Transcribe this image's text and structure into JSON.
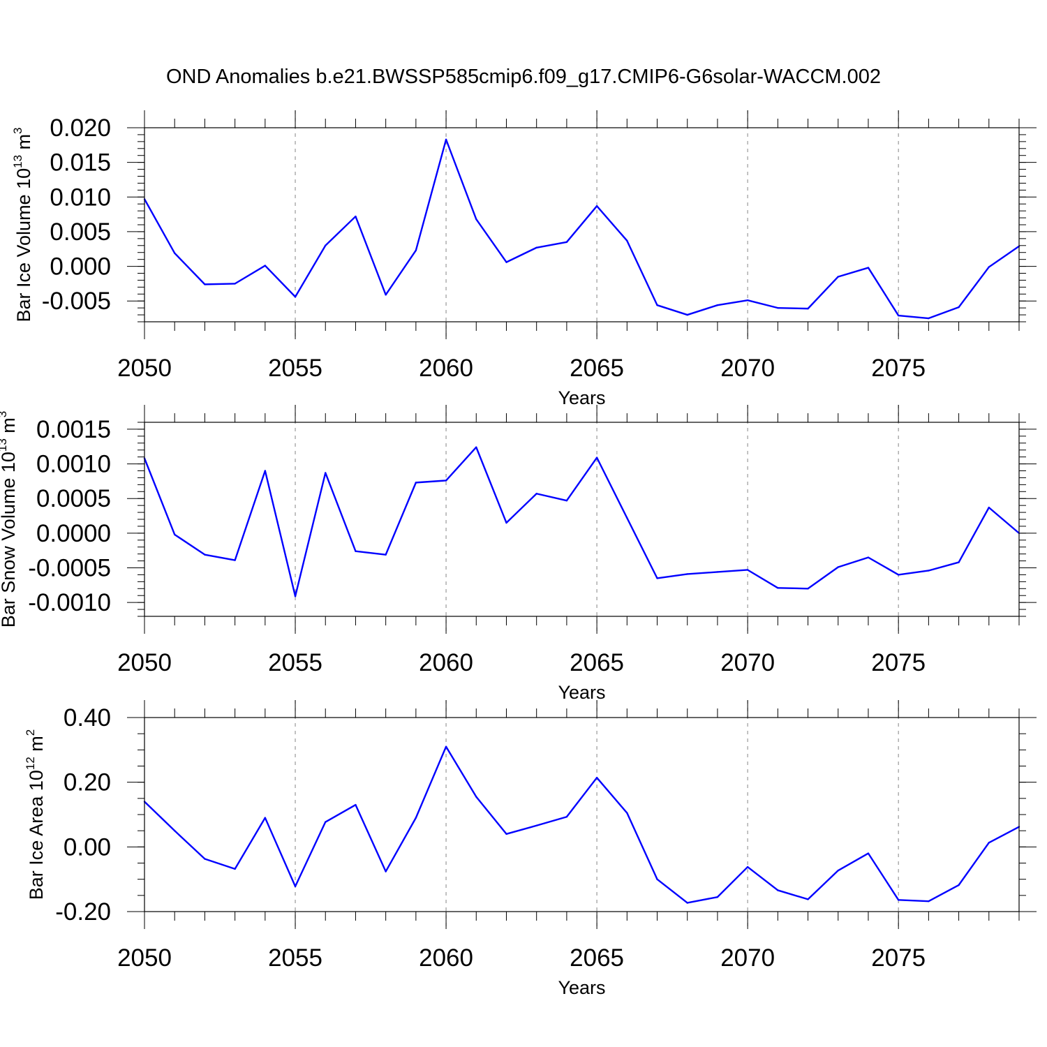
{
  "figure": {
    "title": "OND Anomalies b.e21.BWSSP585cmip6.f09_g17.CMIP6-G6solar-WACCM.002",
    "line_color": "#0000ff",
    "grid_color": "#999999"
  },
  "chart_data": [
    {
      "type": "line",
      "ylabel": "Bar Ice Volume 10",
      "ylabel_exponent": "13",
      "ylabel_unit": " m",
      "ylabel_unit_exponent": "3",
      "xlabel": "Years",
      "xlim": [
        2050,
        2079
      ],
      "ylim": [
        -0.008,
        0.02
      ],
      "x_ticks": [
        2050,
        2055,
        2060,
        2065,
        2070,
        2075
      ],
      "x_tick_labels": [
        "2050",
        "2055",
        "2060",
        "2065",
        "2070",
        "2075"
      ],
      "y_ticks": [
        -0.005,
        0.0,
        0.005,
        0.01,
        0.015,
        0.02
      ],
      "y_tick_labels": [
        "-0.005",
        "0.000",
        "0.005",
        "0.010",
        "0.015",
        "0.020"
      ],
      "y_minor_step": 0.001,
      "grid_x": [
        2055,
        2060,
        2065,
        2070,
        2075
      ],
      "x": [
        2050,
        2051,
        2052,
        2053,
        2054,
        2055,
        2056,
        2057,
        2058,
        2059,
        2060,
        2061,
        2062,
        2063,
        2064,
        2065,
        2066,
        2067,
        2068,
        2069,
        2070,
        2071,
        2072,
        2073,
        2074,
        2075,
        2076,
        2077,
        2078,
        2079
      ],
      "series": [
        {
          "values": [
            0.0097,
            0.0019,
            -0.0026,
            -0.0025,
            0.0001,
            -0.0044,
            0.003,
            0.0072,
            -0.0041,
            0.0023,
            0.0183,
            0.0068,
            0.0006,
            0.0027,
            0.0035,
            0.0087,
            0.0037,
            -0.0056,
            -0.007,
            -0.0056,
            -0.0049,
            -0.006,
            -0.0061,
            -0.0015,
            -0.0002,
            -0.0071,
            -0.0075,
            -0.0059,
            -0.0001,
            0.0029
          ]
        }
      ]
    },
    {
      "type": "line",
      "ylabel": "Bar Snow Volume 10",
      "ylabel_exponent": "13",
      "ylabel_unit": " m",
      "ylabel_unit_exponent": "3",
      "xlabel": "Years",
      "xlim": [
        2050,
        2079
      ],
      "ylim": [
        -0.0012,
        0.0016
      ],
      "x_ticks": [
        2050,
        2055,
        2060,
        2065,
        2070,
        2075
      ],
      "x_tick_labels": [
        "2050",
        "2055",
        "2060",
        "2065",
        "2070",
        "2075"
      ],
      "y_ticks": [
        -0.001,
        -0.0005,
        0.0,
        0.0005,
        0.001,
        0.0015
      ],
      "y_tick_labels": [
        "-0.0010",
        "-0.0005",
        "0.0000",
        "0.0005",
        "0.0010",
        "0.0015"
      ],
      "y_minor_step": 0.0001,
      "grid_x": [
        2055,
        2060,
        2065,
        2070,
        2075
      ],
      "x": [
        2050,
        2051,
        2052,
        2053,
        2054,
        2055,
        2056,
        2057,
        2058,
        2059,
        2060,
        2061,
        2062,
        2063,
        2064,
        2065,
        2066,
        2067,
        2068,
        2069,
        2070,
        2071,
        2072,
        2073,
        2074,
        2075,
        2076,
        2077,
        2078,
        2079
      ],
      "series": [
        {
          "values": [
            0.00108,
            -2e-05,
            -0.00031,
            -0.00039,
            0.0009,
            -0.00091,
            0.00087,
            -0.00026,
            -0.00031,
            0.00073,
            0.00076,
            0.00124,
            0.00015,
            0.00057,
            0.00047,
            0.00109,
            0.00022,
            -0.00065,
            -0.00059,
            -0.00056,
            -0.00053,
            -0.00079,
            -0.0008,
            -0.00049,
            -0.00035,
            -0.0006,
            -0.00054,
            -0.00042,
            0.00037,
            0.0
          ]
        }
      ]
    },
    {
      "type": "line",
      "ylabel": "Bar Ice Area 10",
      "ylabel_exponent": "12",
      "ylabel_unit": " m",
      "ylabel_unit_exponent": "2",
      "xlabel": "Years",
      "xlim": [
        2050,
        2079
      ],
      "ylim": [
        -0.2,
        0.4
      ],
      "x_ticks": [
        2050,
        2055,
        2060,
        2065,
        2070,
        2075
      ],
      "x_tick_labels": [
        "2050",
        "2055",
        "2060",
        "2065",
        "2070",
        "2075"
      ],
      "y_ticks": [
        -0.2,
        0.0,
        0.2,
        0.4
      ],
      "y_tick_labels": [
        "-0.20",
        "0.00",
        "0.20",
        "0.40"
      ],
      "y_minor_step": 0.05,
      "grid_x": [
        2055,
        2060,
        2065,
        2070,
        2075
      ],
      "x": [
        2050,
        2051,
        2052,
        2053,
        2054,
        2055,
        2056,
        2057,
        2058,
        2059,
        2060,
        2061,
        2062,
        2063,
        2064,
        2065,
        2066,
        2067,
        2068,
        2069,
        2070,
        2071,
        2072,
        2073,
        2074,
        2075,
        2076,
        2077,
        2078,
        2079
      ],
      "series": [
        {
          "values": [
            0.14,
            0.05,
            -0.037,
            -0.068,
            0.09,
            -0.122,
            0.077,
            0.13,
            -0.076,
            0.09,
            0.31,
            0.155,
            0.04,
            0.066,
            0.093,
            0.214,
            0.105,
            -0.1,
            -0.173,
            -0.155,
            -0.062,
            -0.134,
            -0.162,
            -0.073,
            -0.02,
            -0.164,
            -0.168,
            -0.118,
            0.013,
            0.062
          ]
        }
      ]
    }
  ]
}
